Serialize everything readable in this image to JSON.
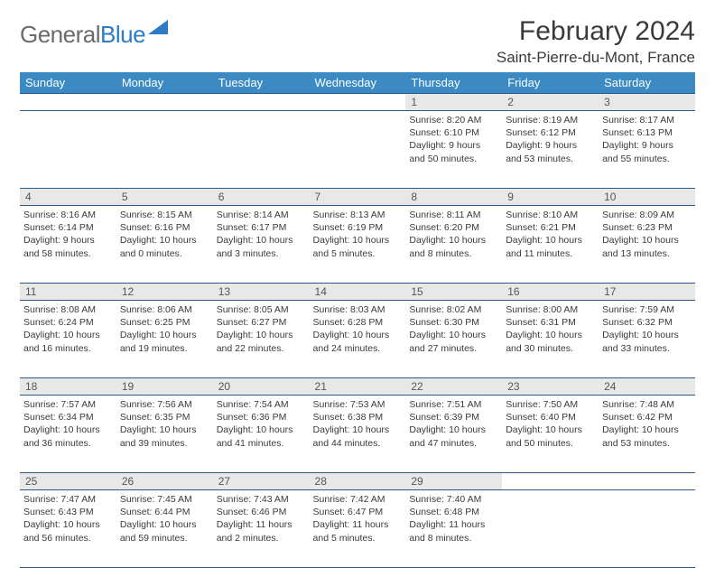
{
  "logo": {
    "text_gray": "General",
    "text_blue": "Blue"
  },
  "title": "February 2024",
  "location": "Saint-Pierre-du-Mont, France",
  "day_headers": [
    "Sunday",
    "Monday",
    "Tuesday",
    "Wednesday",
    "Thursday",
    "Friday",
    "Saturday"
  ],
  "colors": {
    "header_bg": "#3b8ac4",
    "header_text": "#ffffff",
    "daynum_bg": "#e8e8e8",
    "border": "#2a5a8a",
    "logo_gray": "#6b6b6b",
    "logo_blue": "#2c7bc4"
  },
  "weeks": [
    [
      null,
      null,
      null,
      null,
      {
        "n": "1",
        "sr": "Sunrise: 8:20 AM",
        "ss": "Sunset: 6:10 PM",
        "d1": "Daylight: 9 hours",
        "d2": "and 50 minutes."
      },
      {
        "n": "2",
        "sr": "Sunrise: 8:19 AM",
        "ss": "Sunset: 6:12 PM",
        "d1": "Daylight: 9 hours",
        "d2": "and 53 minutes."
      },
      {
        "n": "3",
        "sr": "Sunrise: 8:17 AM",
        "ss": "Sunset: 6:13 PM",
        "d1": "Daylight: 9 hours",
        "d2": "and 55 minutes."
      }
    ],
    [
      {
        "n": "4",
        "sr": "Sunrise: 8:16 AM",
        "ss": "Sunset: 6:14 PM",
        "d1": "Daylight: 9 hours",
        "d2": "and 58 minutes."
      },
      {
        "n": "5",
        "sr": "Sunrise: 8:15 AM",
        "ss": "Sunset: 6:16 PM",
        "d1": "Daylight: 10 hours",
        "d2": "and 0 minutes."
      },
      {
        "n": "6",
        "sr": "Sunrise: 8:14 AM",
        "ss": "Sunset: 6:17 PM",
        "d1": "Daylight: 10 hours",
        "d2": "and 3 minutes."
      },
      {
        "n": "7",
        "sr": "Sunrise: 8:13 AM",
        "ss": "Sunset: 6:19 PM",
        "d1": "Daylight: 10 hours",
        "d2": "and 5 minutes."
      },
      {
        "n": "8",
        "sr": "Sunrise: 8:11 AM",
        "ss": "Sunset: 6:20 PM",
        "d1": "Daylight: 10 hours",
        "d2": "and 8 minutes."
      },
      {
        "n": "9",
        "sr": "Sunrise: 8:10 AM",
        "ss": "Sunset: 6:21 PM",
        "d1": "Daylight: 10 hours",
        "d2": "and 11 minutes."
      },
      {
        "n": "10",
        "sr": "Sunrise: 8:09 AM",
        "ss": "Sunset: 6:23 PM",
        "d1": "Daylight: 10 hours",
        "d2": "and 13 minutes."
      }
    ],
    [
      {
        "n": "11",
        "sr": "Sunrise: 8:08 AM",
        "ss": "Sunset: 6:24 PM",
        "d1": "Daylight: 10 hours",
        "d2": "and 16 minutes."
      },
      {
        "n": "12",
        "sr": "Sunrise: 8:06 AM",
        "ss": "Sunset: 6:25 PM",
        "d1": "Daylight: 10 hours",
        "d2": "and 19 minutes."
      },
      {
        "n": "13",
        "sr": "Sunrise: 8:05 AM",
        "ss": "Sunset: 6:27 PM",
        "d1": "Daylight: 10 hours",
        "d2": "and 22 minutes."
      },
      {
        "n": "14",
        "sr": "Sunrise: 8:03 AM",
        "ss": "Sunset: 6:28 PM",
        "d1": "Daylight: 10 hours",
        "d2": "and 24 minutes."
      },
      {
        "n": "15",
        "sr": "Sunrise: 8:02 AM",
        "ss": "Sunset: 6:30 PM",
        "d1": "Daylight: 10 hours",
        "d2": "and 27 minutes."
      },
      {
        "n": "16",
        "sr": "Sunrise: 8:00 AM",
        "ss": "Sunset: 6:31 PM",
        "d1": "Daylight: 10 hours",
        "d2": "and 30 minutes."
      },
      {
        "n": "17",
        "sr": "Sunrise: 7:59 AM",
        "ss": "Sunset: 6:32 PM",
        "d1": "Daylight: 10 hours",
        "d2": "and 33 minutes."
      }
    ],
    [
      {
        "n": "18",
        "sr": "Sunrise: 7:57 AM",
        "ss": "Sunset: 6:34 PM",
        "d1": "Daylight: 10 hours",
        "d2": "and 36 minutes."
      },
      {
        "n": "19",
        "sr": "Sunrise: 7:56 AM",
        "ss": "Sunset: 6:35 PM",
        "d1": "Daylight: 10 hours",
        "d2": "and 39 minutes."
      },
      {
        "n": "20",
        "sr": "Sunrise: 7:54 AM",
        "ss": "Sunset: 6:36 PM",
        "d1": "Daylight: 10 hours",
        "d2": "and 41 minutes."
      },
      {
        "n": "21",
        "sr": "Sunrise: 7:53 AM",
        "ss": "Sunset: 6:38 PM",
        "d1": "Daylight: 10 hours",
        "d2": "and 44 minutes."
      },
      {
        "n": "22",
        "sr": "Sunrise: 7:51 AM",
        "ss": "Sunset: 6:39 PM",
        "d1": "Daylight: 10 hours",
        "d2": "and 47 minutes."
      },
      {
        "n": "23",
        "sr": "Sunrise: 7:50 AM",
        "ss": "Sunset: 6:40 PM",
        "d1": "Daylight: 10 hours",
        "d2": "and 50 minutes."
      },
      {
        "n": "24",
        "sr": "Sunrise: 7:48 AM",
        "ss": "Sunset: 6:42 PM",
        "d1": "Daylight: 10 hours",
        "d2": "and 53 minutes."
      }
    ],
    [
      {
        "n": "25",
        "sr": "Sunrise: 7:47 AM",
        "ss": "Sunset: 6:43 PM",
        "d1": "Daylight: 10 hours",
        "d2": "and 56 minutes."
      },
      {
        "n": "26",
        "sr": "Sunrise: 7:45 AM",
        "ss": "Sunset: 6:44 PM",
        "d1": "Daylight: 10 hours",
        "d2": "and 59 minutes."
      },
      {
        "n": "27",
        "sr": "Sunrise: 7:43 AM",
        "ss": "Sunset: 6:46 PM",
        "d1": "Daylight: 11 hours",
        "d2": "and 2 minutes."
      },
      {
        "n": "28",
        "sr": "Sunrise: 7:42 AM",
        "ss": "Sunset: 6:47 PM",
        "d1": "Daylight: 11 hours",
        "d2": "and 5 minutes."
      },
      {
        "n": "29",
        "sr": "Sunrise: 7:40 AM",
        "ss": "Sunset: 6:48 PM",
        "d1": "Daylight: 11 hours",
        "d2": "and 8 minutes."
      },
      null,
      null
    ]
  ]
}
